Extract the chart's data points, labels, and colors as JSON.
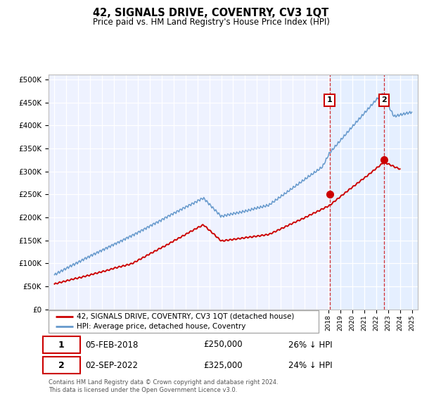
{
  "title": "42, SIGNALS DRIVE, COVENTRY, CV3 1QT",
  "subtitle": "Price paid vs. HM Land Registry's House Price Index (HPI)",
  "legend_line1": "42, SIGNALS DRIVE, COVENTRY, CV3 1QT (detached house)",
  "legend_line2": "HPI: Average price, detached house, Coventry",
  "sale1_date": "05-FEB-2018",
  "sale1_price": 250000,
  "sale1_hpi_pct": "26% ↓ HPI",
  "sale1_year": 2018.09,
  "sale2_date": "02-SEP-2022",
  "sale2_price": 325000,
  "sale2_hpi_pct": "24% ↓ HPI",
  "sale2_year": 2022.67,
  "footer": "Contains HM Land Registry data © Crown copyright and database right 2024.\nThis data is licensed under the Open Government Licence v3.0.",
  "red_color": "#cc0000",
  "blue_color": "#6699cc",
  "blue_fill": "#ddeeff",
  "background_color": "#eef2ff",
  "grid_color": "#ccccdd",
  "ylim_max": 500000,
  "xlim_start": 1994.5,
  "xlim_end": 2025.5
}
